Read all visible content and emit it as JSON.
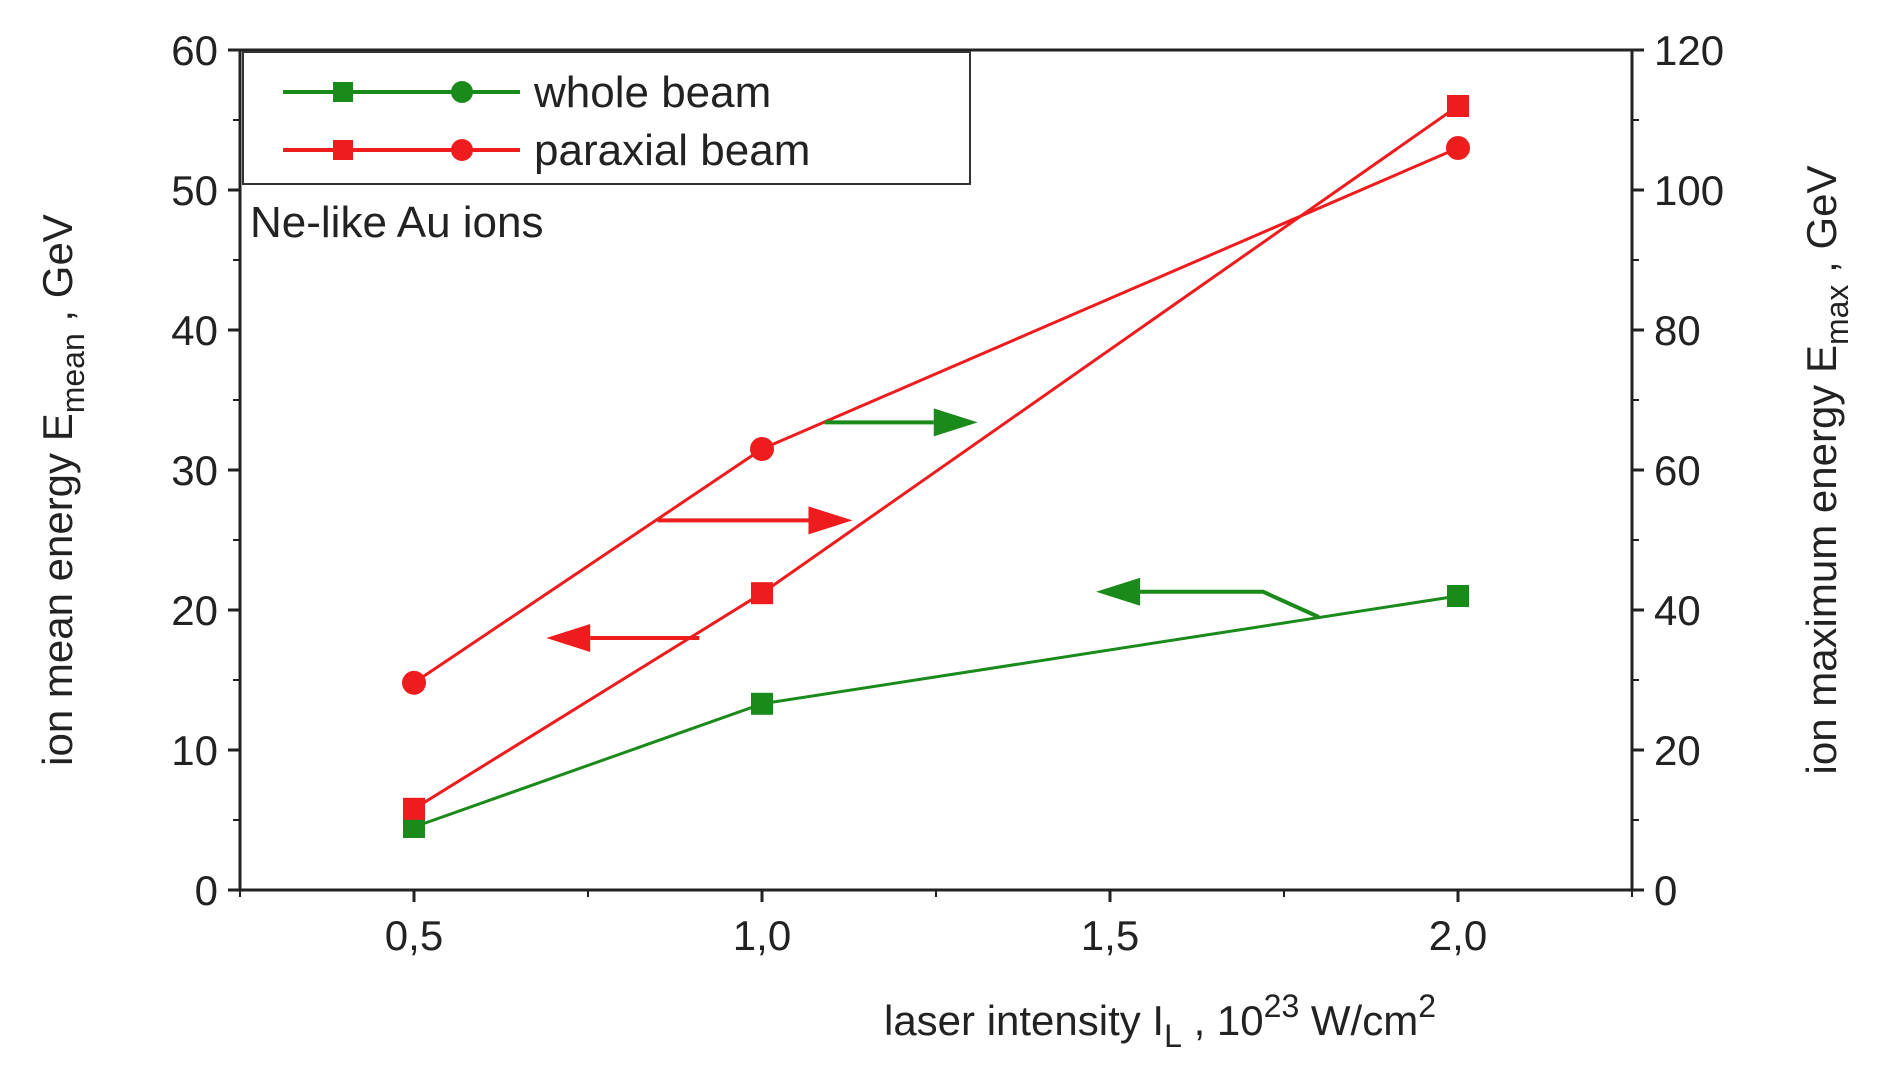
{
  "chart_data": {
    "type": "line",
    "x": [
      0.5,
      1.0,
      2.0
    ],
    "xlim": [
      0.25,
      2.25
    ],
    "x_ticks": [
      "0,5",
      "1,0",
      "1,5",
      "2,0"
    ],
    "x_tick_values": [
      0.5,
      1.0,
      1.5,
      2.0
    ],
    "xlabel": {
      "main": "laser intensity I",
      "sub": "L",
      "unit_prefix": " , 10",
      "sup": "23",
      "unit_mid": " W/cm",
      "sup2": "2"
    },
    "y_left": {
      "lim": [
        0,
        60
      ],
      "ticks": [
        "0",
        "10",
        "20",
        "30",
        "40",
        "50",
        "60"
      ],
      "tick_values": [
        0,
        10,
        20,
        30,
        40,
        50,
        60
      ],
      "label_main": "ion mean energy E",
      "label_sub": "mean",
      "label_unit": " , GeV"
    },
    "y_right": {
      "lim": [
        0,
        120
      ],
      "ticks": [
        "0",
        "20",
        "40",
        "60",
        "80",
        "100",
        "120"
      ],
      "tick_values": [
        0,
        20,
        40,
        60,
        80,
        100,
        120
      ],
      "label_main": "ion maximum energy E",
      "label_sub": "max",
      "label_unit": " , GeV"
    },
    "series": [
      {
        "name": "whole beam (mean)",
        "axis": "left",
        "marker": "square",
        "color": "#1a8a1a",
        "values": [
          4.5,
          13.3,
          21.0
        ]
      },
      {
        "name": "paraxial beam (mean)",
        "axis": "left",
        "marker": "square",
        "color": "#ee1c1c",
        "values": [
          5.8,
          21.2,
          56.0
        ]
      },
      {
        "name": "paraxial beam (max)",
        "axis": "right",
        "marker": "circle",
        "color": "#ee1c1c",
        "values": [
          29.6,
          63.0,
          106.0
        ]
      }
    ],
    "legend": [
      {
        "label": "whole beam",
        "color": "#1a8a1a"
      },
      {
        "label": "paraxial beam",
        "color": "#ee1c1c"
      }
    ],
    "legend_position": "top-left",
    "annotation": "Ne-like Au ions",
    "arrows": [
      {
        "color": "#ee1c1c",
        "direction": "right",
        "meaning": "paraxial beam max -> right axis"
      },
      {
        "color": "#ee1c1c",
        "direction": "left",
        "meaning": "paraxial beam mean -> left axis"
      },
      {
        "color": "#1a8a1a",
        "direction": "right",
        "meaning": "whole beam max -> right axis"
      },
      {
        "color": "#1a8a1a",
        "direction": "left",
        "meaning": "whole beam mean -> left axis"
      }
    ]
  }
}
